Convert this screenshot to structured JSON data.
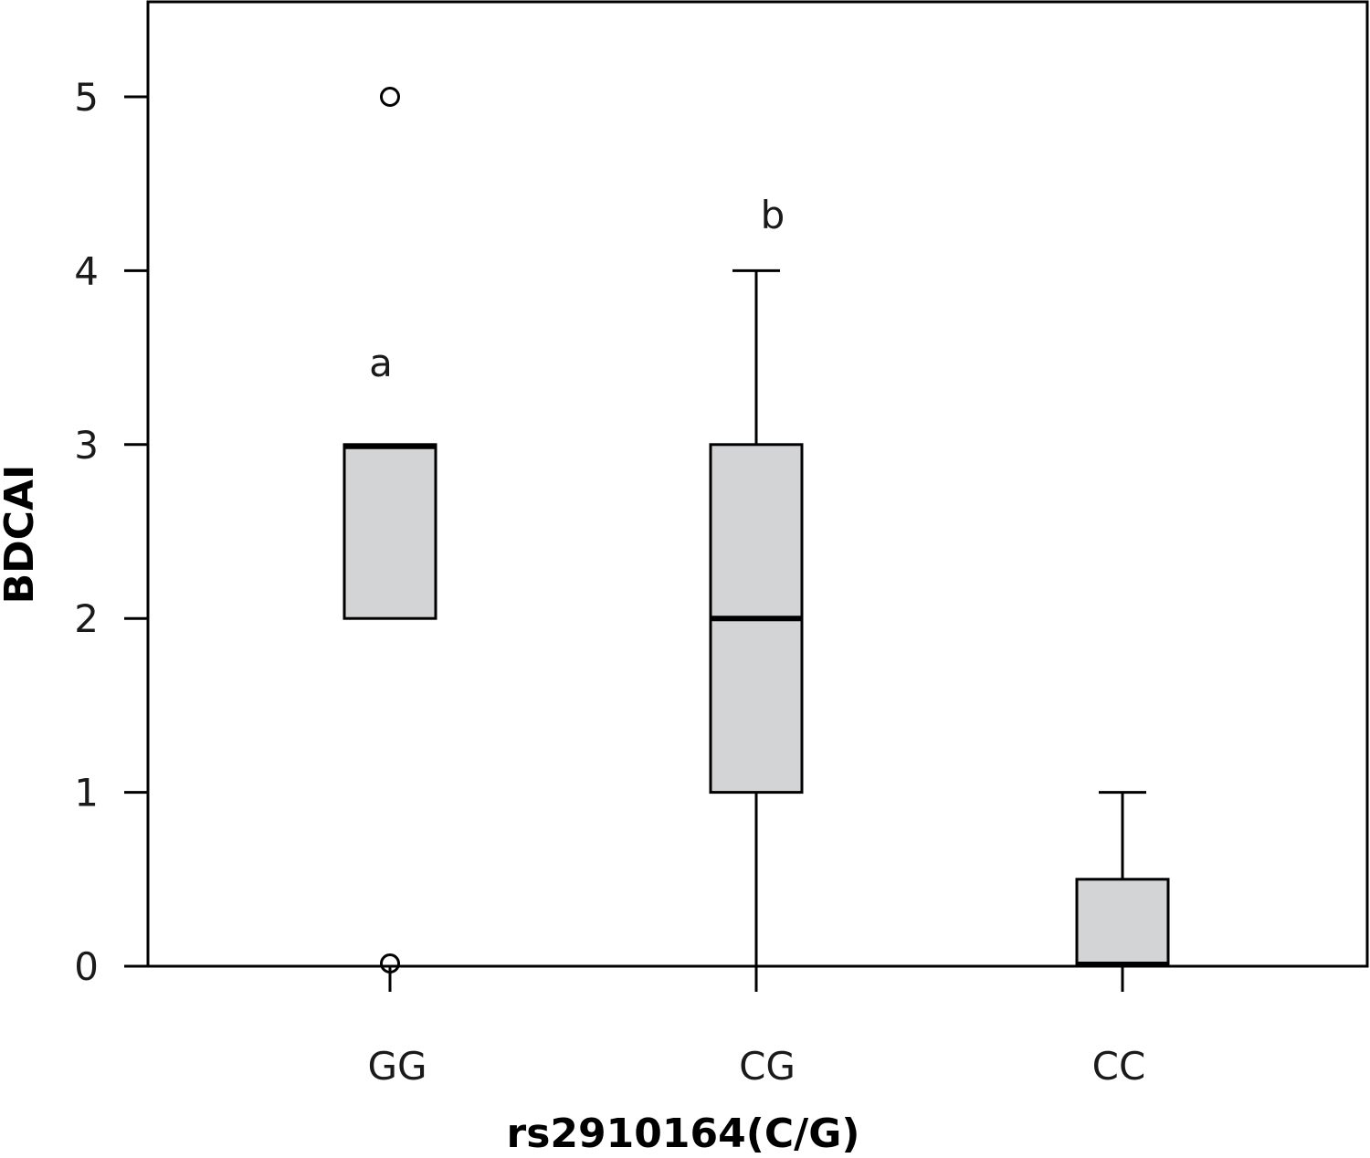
{
  "chart_data": {
    "type": "box",
    "xlabel": "rs2910164(C/G)",
    "ylabel": "BDCAI",
    "ylim": [
      0,
      5.55
    ],
    "yticks": [
      0,
      1,
      2,
      3,
      4,
      5
    ],
    "categories": [
      "GG",
      "CG",
      "CC"
    ],
    "boxes": [
      {
        "category": "GG",
        "whisker_low": 2,
        "q1": 2,
        "median": 3,
        "q3": 3,
        "whisker_high": 3,
        "outliers": [
          5,
          0
        ],
        "annotation": "a"
      },
      {
        "category": "CG",
        "whisker_low": 0,
        "q1": 1,
        "median": 2,
        "q3": 3,
        "whisker_high": 4,
        "outliers": [],
        "annotation": "b"
      },
      {
        "category": "CC",
        "whisker_low": 0,
        "q1": 0,
        "median": 0,
        "q3": 0.5,
        "whisker_high": 1,
        "outliers": [],
        "annotation": ""
      }
    ],
    "grid": false,
    "legend": "none",
    "colors": {
      "box_fill": "#d3d4d6",
      "stroke": "#000000"
    }
  }
}
